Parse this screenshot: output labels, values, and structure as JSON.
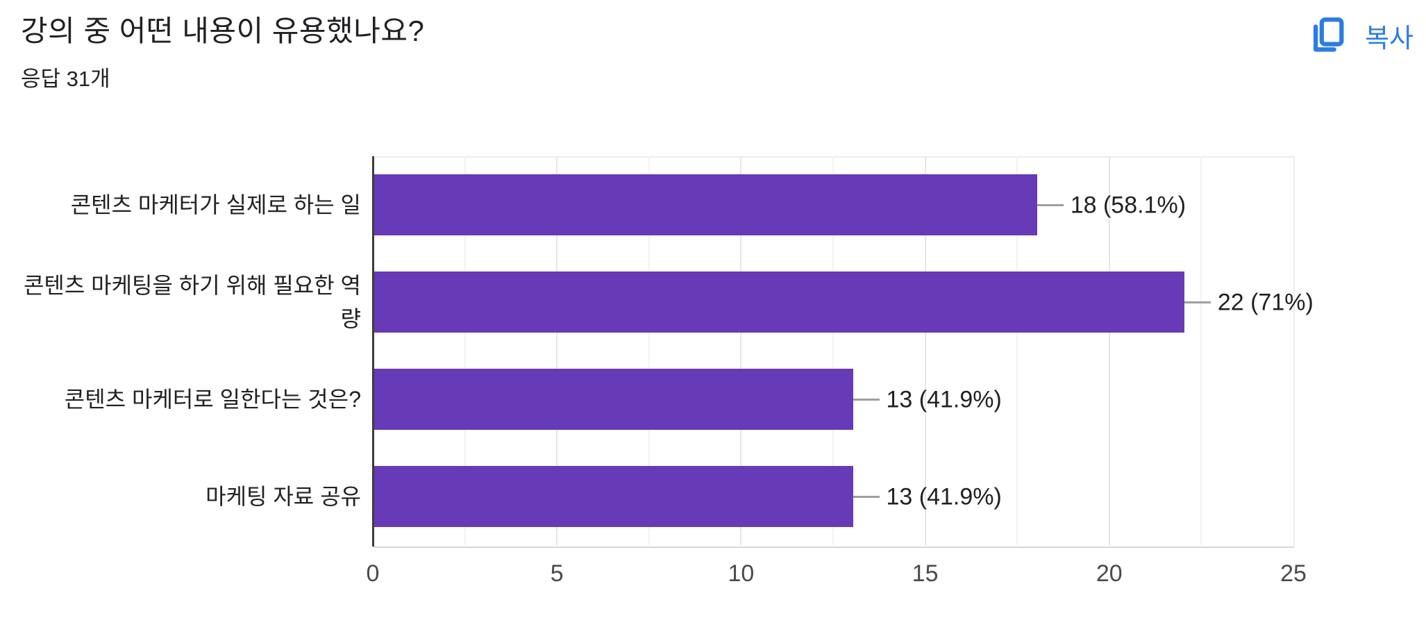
{
  "header": {
    "title": "강의 중 어떤 내용이 유용했나요?",
    "response_count": "응답 31개",
    "copy_label": "복사"
  },
  "colors": {
    "bar": "#673ab7",
    "link_blue": "#2b7ce5",
    "axis_line": "#3c3c3c",
    "grid_major": "#e6e6e6",
    "grid_minor": "#f3f3f3",
    "text_primary": "#212121",
    "tick_label": "#4a4a4a",
    "connector": "#9e9e9e"
  },
  "chart_data": {
    "type": "bar",
    "orientation": "horizontal",
    "title": "강의 중 어떤 내용이 유용했나요?",
    "subtitle": "응답 31개",
    "total_responses": 31,
    "categories": [
      "콘텐츠 마케터가 실제로 하는 일",
      "콘텐츠 마케팅을 하기 위해 필요한 역량",
      "콘텐츠 마케터로 일한다는 것은?",
      "마케팅 자료 공유"
    ],
    "values": [
      18,
      22,
      13,
      13
    ],
    "value_labels": [
      "18 (58.1%)",
      "22 (71%)",
      "13 (41.9%)",
      "13 (41.9%)"
    ],
    "xlim": [
      0,
      25
    ],
    "x_ticks": [
      0,
      5,
      10,
      15,
      20,
      25
    ],
    "minor_tick_step": 2.5,
    "grid": true,
    "legend": false,
    "xlabel": "",
    "ylabel": ""
  }
}
